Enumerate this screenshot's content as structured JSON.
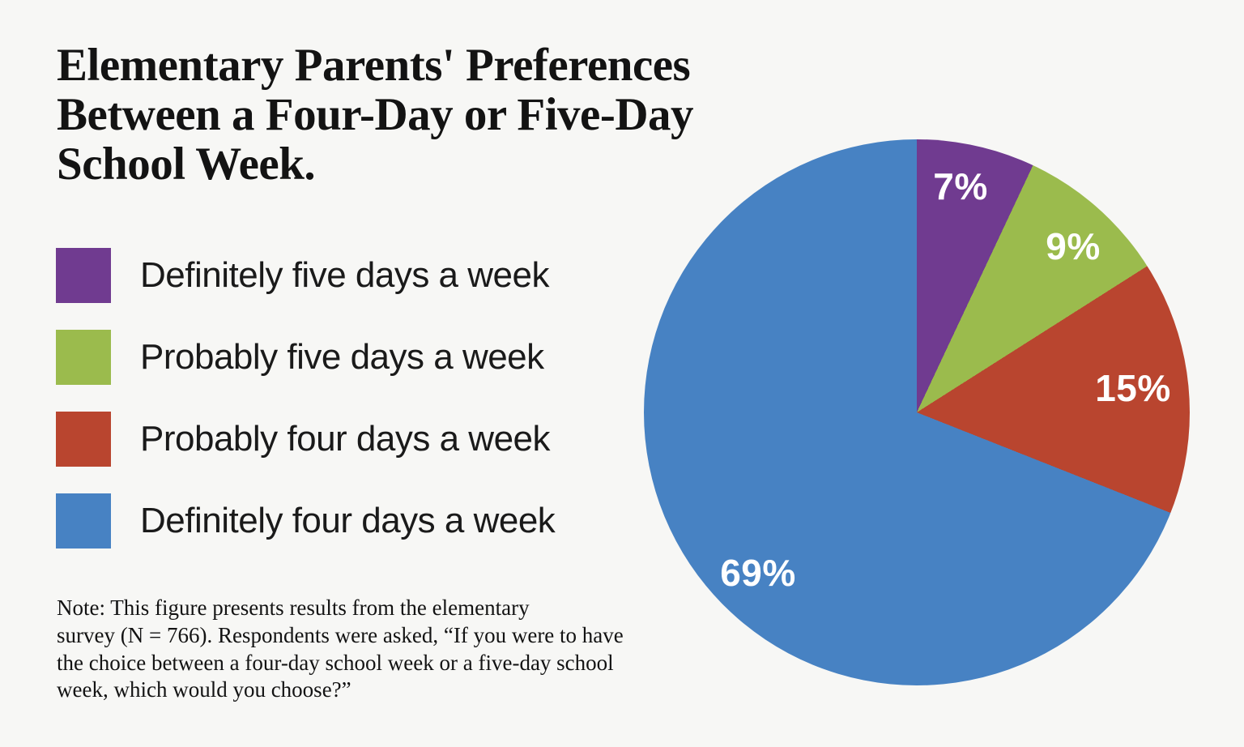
{
  "page": {
    "background": "#F7F7F5"
  },
  "header": {
    "title": "Elementary Parents' Preferences\nBetween a Four-Day or Five-Day\nSchool Week."
  },
  "legend": {
    "items": [
      {
        "label": "Definitely five days a week",
        "color": "#703B90"
      },
      {
        "label": "Probably five days a week",
        "color": "#9BBB4D"
      },
      {
        "label": "Probably four days a week",
        "color": "#B9452F"
      },
      {
        "label": "Definitely four days a week",
        "color": "#4782C3"
      }
    ]
  },
  "note": {
    "text": "Note: This figure presents results from the elementary\nsurvey (N = 766). Respondents were asked, “If you were to have\nthe choice between a four-day school week or a five-day school\nweek, which would you choose?”"
  },
  "chart_data": {
    "type": "pie",
    "title": "Elementary Parents' Preferences Between a Four-Day or Five-Day School Week.",
    "categories": [
      "Definitely five days a week",
      "Probably five days a week",
      "Probably four days a week",
      "Definitely four days a week"
    ],
    "values": [
      7,
      9,
      15,
      69
    ],
    "unit": "percent",
    "colors": [
      "#703B90",
      "#9BBB4D",
      "#B9452F",
      "#4782C3"
    ],
    "slice_labels": [
      "7%",
      "9%",
      "15%",
      "69%"
    ],
    "start_angle_deg": 0,
    "direction": "clockwise",
    "legend_position": "left",
    "sample_size_note": "N = 766"
  }
}
